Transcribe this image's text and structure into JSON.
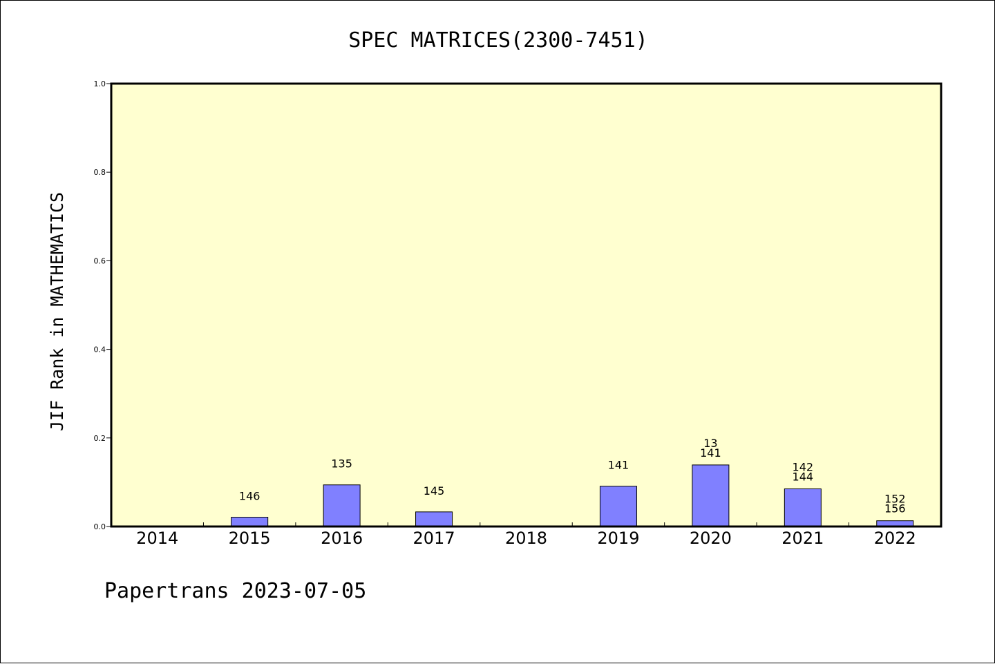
{
  "colors": {
    "plot_background": "#ffffd0",
    "bar_fill": "#8080ff",
    "bar_stroke": "#000000",
    "axis": "#000000"
  },
  "footer": {
    "text": "Papertrans 2023-07-05"
  },
  "chart_data": {
    "type": "bar",
    "title": "SPEC MATRICES(2300-7451)",
    "xlabel": "",
    "ylabel": "JIF Rank in MATHEMATICS",
    "ylim": [
      0,
      1.0
    ],
    "yticks": [
      "0.0",
      "0.2",
      "0.4",
      "0.6",
      "0.8",
      "1.0"
    ],
    "grid": false,
    "categories": [
      "2014",
      "2015",
      "2016",
      "2017",
      "2018",
      "2019",
      "2020",
      "2021",
      "2022"
    ],
    "values": [
      null,
      0.021,
      0.094,
      0.033,
      null,
      0.091,
      0.139,
      0.085,
      0.013
    ],
    "bar_labels": [
      [],
      [
        "146"
      ],
      [
        "135"
      ],
      [
        "145"
      ],
      [],
      [
        "141"
      ],
      [
        "13",
        "141"
      ],
      [
        "142",
        "144"
      ],
      [
        "152",
        "156"
      ]
    ]
  }
}
